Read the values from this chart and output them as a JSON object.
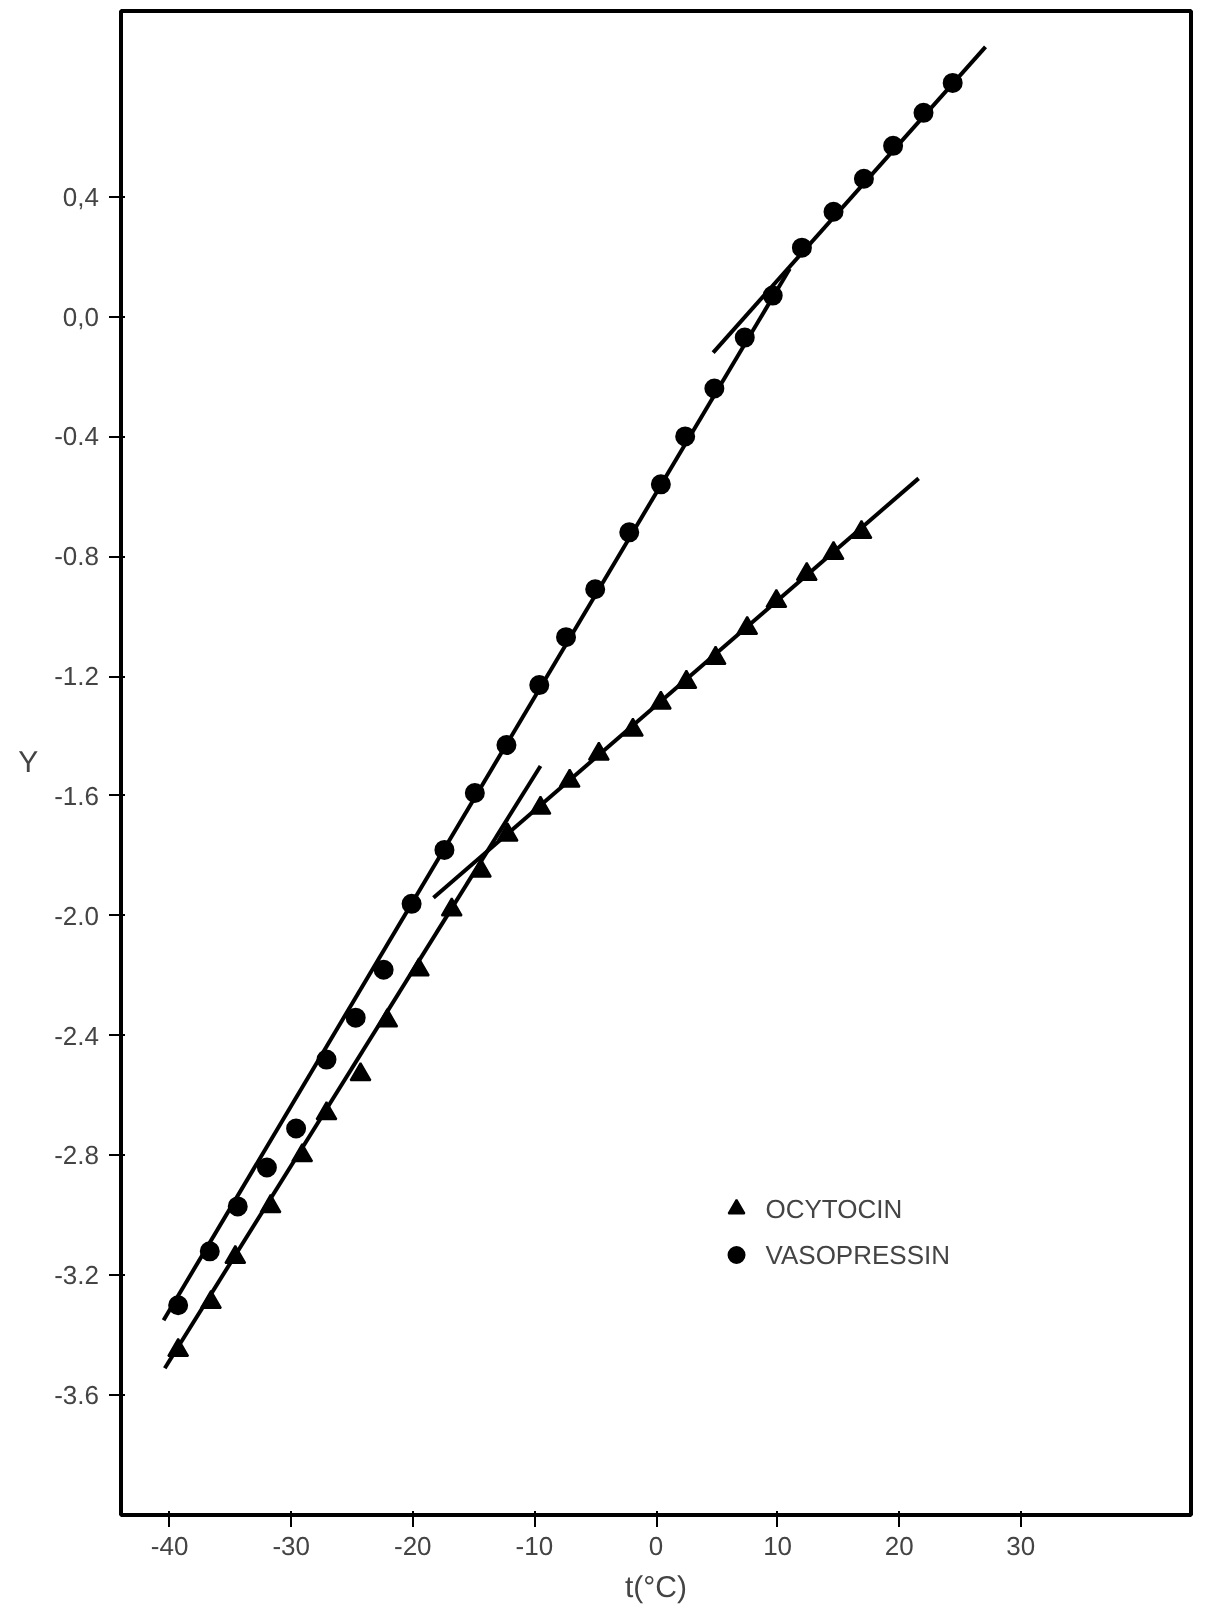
{
  "chart_data": {
    "type": "scatter",
    "xlabel": "t(°C)",
    "ylabel": "Y",
    "xlim": [
      -44,
      44
    ],
    "ylim": [
      -4.0,
      1.02
    ],
    "xticks": [
      -40,
      -30,
      -20,
      -10,
      0,
      10,
      20,
      30
    ],
    "yticks": [
      {
        "value": 0.4,
        "label": "0,4"
      },
      {
        "value": 0,
        "label": "0,0"
      },
      -0.4,
      -0.8,
      -1.2,
      -1.6,
      {
        "value": -2.0,
        "label": "-2.0"
      },
      -2.4,
      -2.8,
      -3.2,
      -3.6
    ],
    "grid": false,
    "legend": "bottom right",
    "series": [
      {
        "name": "OCYTOCIN",
        "marker": "triangle",
        "color": "#000000",
        "x": [
          -39.3,
          -36.6,
          -34.6,
          -31.7,
          -29.1,
          -27.1,
          -24.3,
          -22.1,
          -19.5,
          -16.8,
          -14.4,
          -12.2,
          -9.5,
          -7.1,
          -4.7,
          -1.9,
          0.4,
          2.5,
          4.9,
          7.5,
          9.9,
          12.4,
          14.6,
          16.9
        ],
        "values": [
          -3.45,
          -3.29,
          -3.14,
          -2.97,
          -2.8,
          -2.66,
          -2.53,
          -2.35,
          -2.18,
          -1.98,
          -1.85,
          -1.73,
          -1.64,
          -1.55,
          -1.46,
          -1.38,
          -1.29,
          -1.22,
          -1.14,
          -1.04,
          -0.95,
          -0.86,
          -0.79,
          -0.72
        ]
      },
      {
        "name": "VASOPRESSIN",
        "marker": "circle",
        "color": "#000000",
        "x": [
          -39.3,
          -36.7,
          -34.4,
          -32.0,
          -29.6,
          -27.1,
          -24.7,
          -22.4,
          -20.1,
          -17.4,
          -14.9,
          -12.3,
          -9.6,
          -7.4,
          -5.0,
          -2.2,
          0.4,
          2.4,
          4.8,
          7.3,
          9.6,
          12.0,
          14.6,
          17.1,
          19.5,
          22.0,
          24.4
        ],
        "values": [
          -3.3,
          -3.12,
          -2.97,
          -2.84,
          -2.71,
          -2.48,
          -2.34,
          -2.18,
          -1.96,
          -1.78,
          -1.59,
          -1.43,
          -1.23,
          -1.07,
          -0.91,
          -0.72,
          -0.56,
          -0.4,
          -0.24,
          -0.07,
          0.07,
          0.23,
          0.35,
          0.46,
          0.57,
          0.68,
          0.78
        ]
      },
      {
        "type": "line",
        "color": "#000000",
        "x": [
          -40.4,
          -9.5
        ],
        "values": [
          -3.51,
          -1.5
        ]
      },
      {
        "type": "line",
        "color": "#000000",
        "x": [
          -18.3,
          21.6
        ],
        "values": [
          -1.94,
          -0.54
        ]
      },
      {
        "type": "line",
        "color": "#000000",
        "x": [
          -40.5,
          11.0
        ],
        "values": [
          -3.35,
          0.16
        ]
      },
      {
        "type": "line",
        "color": "#000000",
        "x": [
          4.7,
          27.1
        ],
        "values": [
          -0.12,
          0.9
        ]
      }
    ]
  }
}
